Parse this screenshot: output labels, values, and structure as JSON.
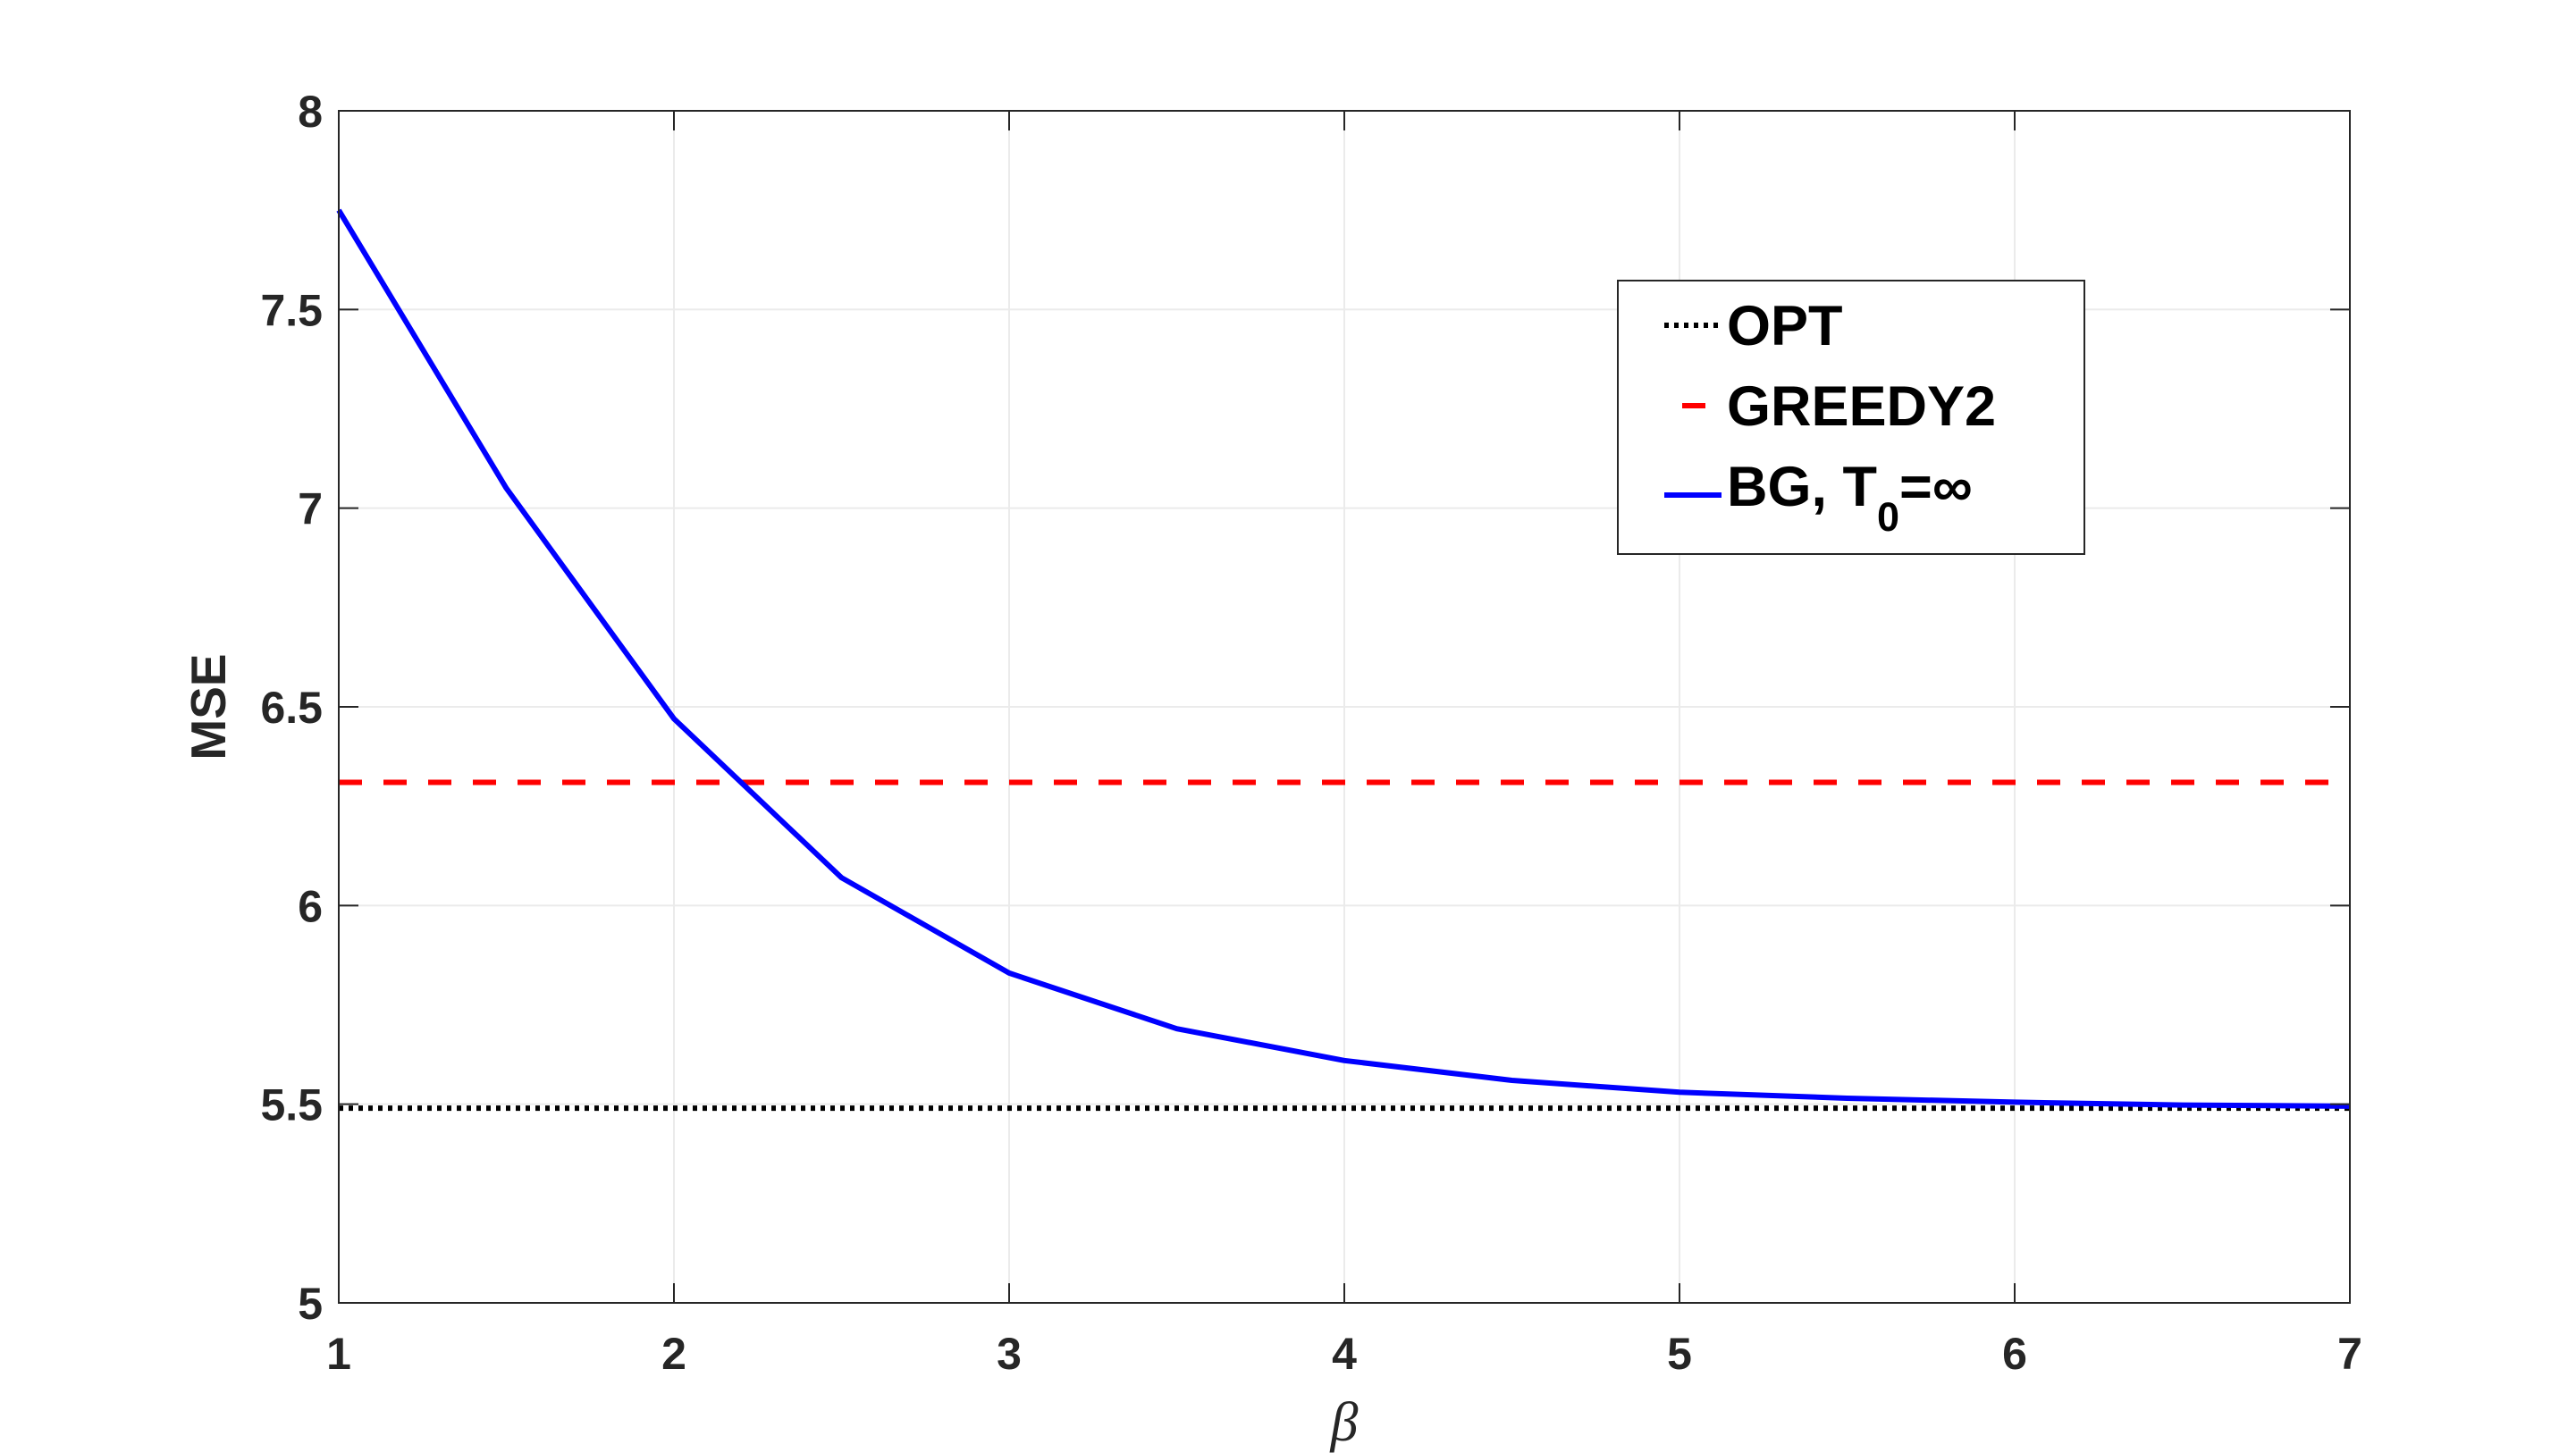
{
  "chart_data": {
    "type": "line",
    "title": "",
    "xlabel": "β",
    "ylabel": "MSE",
    "xlim": [
      1,
      7
    ],
    "ylim": [
      5,
      8
    ],
    "xticks": [
      1,
      2,
      3,
      4,
      5,
      6,
      7
    ],
    "yticks": [
      5,
      5.5,
      6,
      6.5,
      7,
      7.5,
      8
    ],
    "xtick_labels": [
      "1",
      "2",
      "3",
      "4",
      "5",
      "6",
      "7"
    ],
    "ytick_labels": [
      "5",
      "5.5",
      "6",
      "6.5",
      "7",
      "7.5",
      "8"
    ],
    "grid": true,
    "legend_position": "top-right",
    "series": [
      {
        "name": "OPT",
        "style": "dotted",
        "color": "#000000",
        "x": [
          1,
          7
        ],
        "y": [
          5.49,
          5.49
        ]
      },
      {
        "name": "GREEDY2",
        "style": "dashed",
        "color": "#ff0000",
        "x": [
          1,
          7
        ],
        "y": [
          6.31,
          6.31
        ]
      },
      {
        "name": "BG, T0=∞",
        "legend_main": "BG, T",
        "legend_sub": "0",
        "legend_tail": "=∞",
        "style": "solid",
        "color": "#0000ff",
        "x": [
          1,
          1.5,
          2,
          2.5,
          3,
          3.5,
          4,
          4.5,
          5,
          5.5,
          6,
          6.5,
          7
        ],
        "y": [
          7.75,
          7.05,
          6.47,
          6.07,
          5.83,
          5.69,
          5.61,
          5.56,
          5.53,
          5.515,
          5.505,
          5.498,
          5.495
        ]
      }
    ]
  }
}
